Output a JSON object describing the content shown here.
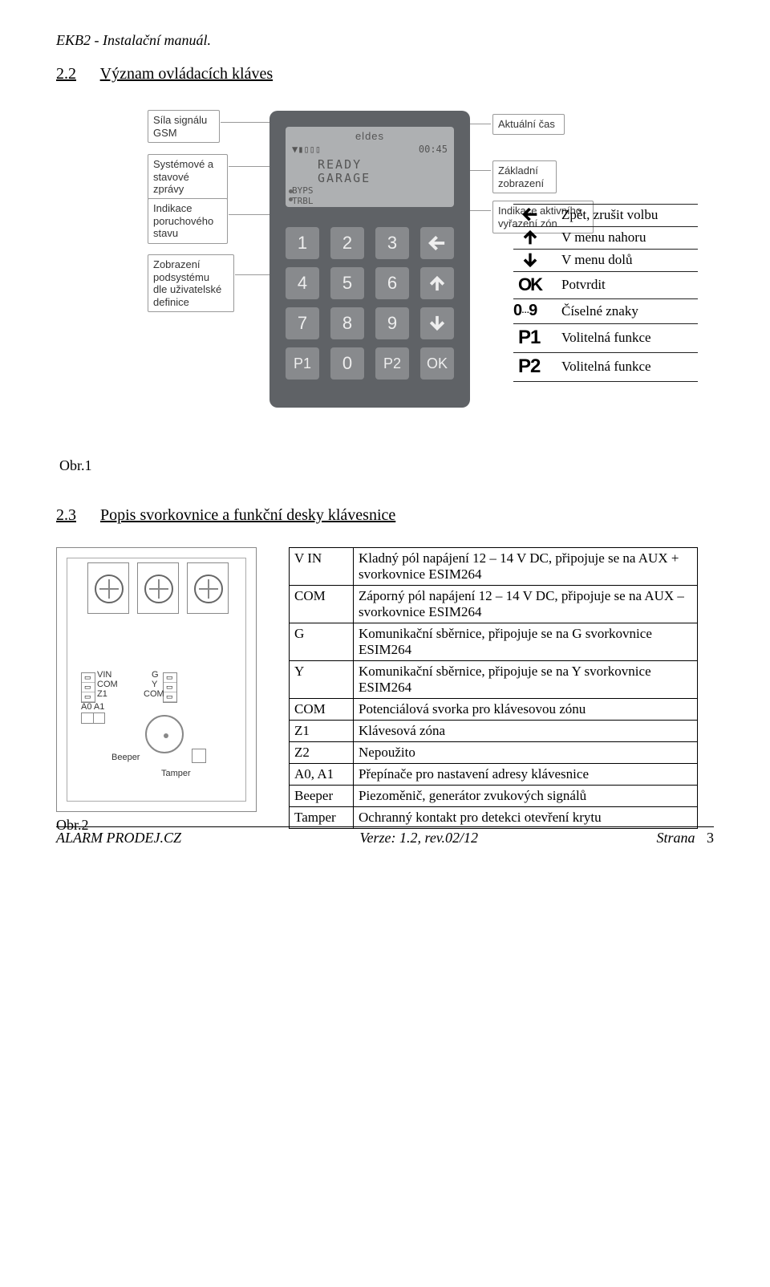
{
  "header": "EKB2 - Instalační manuál.",
  "section22": {
    "num": "2.2",
    "title": "Význam ovládacích kláves"
  },
  "callouts_left": [
    "Síla signálu\nGSM",
    "Systémové a\nstavové zprávy",
    "Indikace\nporuchového\nstavu",
    "Zobrazení\npodsystému\ndle uživatelské\ndefinice"
  ],
  "callouts_right": [
    "Aktuální čas",
    "Základní\nzobrazení",
    "Indikace aktivního\nvyřazení zón"
  ],
  "lcd": {
    "brand": "eldes",
    "signal": "▼▮▯▯▯",
    "time": "00:45",
    "ready": "READY\nGARAGE",
    "byps": "BYPS\nTRBL"
  },
  "keys": {
    "row1": [
      "1",
      "2",
      "3"
    ],
    "row2": [
      "4",
      "5",
      "6"
    ],
    "row3": [
      "7",
      "8",
      "9"
    ],
    "row4": [
      "P1",
      "0",
      "P2",
      "OK"
    ]
  },
  "keymean": [
    {
      "sym": "arrow-left",
      "label": "Zpět, zrušit volbu"
    },
    {
      "sym": "arrow-up",
      "label": "V menu nahoru"
    },
    {
      "sym": "arrow-down",
      "label": "V menu dolů"
    },
    {
      "sym": "OK",
      "label": "Potvrdit"
    },
    {
      "sym": "0…9",
      "label": "Číselné znaky"
    },
    {
      "sym": "P1",
      "label": "Volitelná funkce"
    },
    {
      "sym": "P2",
      "label": "Volitelná funkce"
    }
  ],
  "obr1": "Obr.1",
  "section23": {
    "num": "2.3",
    "title": "Popis svorkovnice a funkční desky klávesnice"
  },
  "board": {
    "leftpins": [
      "VIN",
      "COM",
      "Z1"
    ],
    "leftpins2": "A0 A1",
    "rightpins": [
      "G",
      "Y",
      "COM"
    ],
    "beeper_label": "Beeper",
    "tamper_label": "Tamper"
  },
  "obr2": "Obr.2",
  "terminals": [
    [
      "V IN",
      "Kladný pól napájení 12 – 14 V DC, připojuje se na AUX + svorkovnice ESIM264"
    ],
    [
      "COM",
      "Záporný pól napájení 12 – 14 V DC, připojuje se na AUX – svorkovnice ESIM264"
    ],
    [
      "G",
      "Komunikační sběrnice, připojuje se na G svorkovnice ESIM264"
    ],
    [
      "Y",
      "Komunikační sběrnice, připojuje se na Y svorkovnice ESIM264"
    ],
    [
      "COM",
      "Potenciálová svorka pro klávesovou zónu"
    ],
    [
      "Z1",
      "Klávesová zóna"
    ],
    [
      "Z2",
      "Nepoužito"
    ],
    [
      "A0, A1",
      "Přepínače pro nastavení adresy klávesnice"
    ],
    [
      "Beeper",
      "Piezoměnič, generátor zvukových signálů"
    ],
    [
      "Tamper",
      "Ochranný kontakt pro detekci otevření krytu"
    ]
  ],
  "footer": {
    "left": "ALARM PRODEJ.CZ",
    "center": "Verze: 1.2, rev.02/12",
    "right_label": "Strana",
    "right_page": "3"
  },
  "colors": {
    "keypad_bg": "#5f6266",
    "lcd_bg": "#aeb0b2",
    "key_bg": "#888a8d",
    "border": "#999999",
    "text": "#000000"
  }
}
